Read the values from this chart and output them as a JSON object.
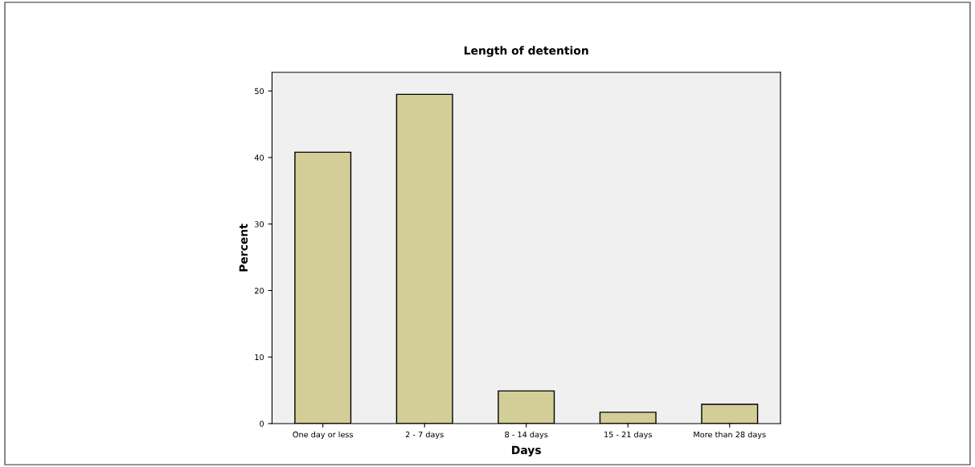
{
  "chart_data": {
    "type": "bar",
    "title": "Length of detention",
    "xlabel": "Days",
    "ylabel": "Percent",
    "categories": [
      "One day or less",
      "2 - 7 days",
      "8 - 14 days",
      "15 - 21 days",
      "More than 28 days"
    ],
    "values": [
      40.8,
      49.5,
      4.9,
      1.7,
      2.9
    ],
    "color": "#d3ce97",
    "ylim": [
      0,
      52.8
    ],
    "yticks": [
      0,
      10,
      20,
      30,
      40,
      50
    ],
    "grid": false
  }
}
